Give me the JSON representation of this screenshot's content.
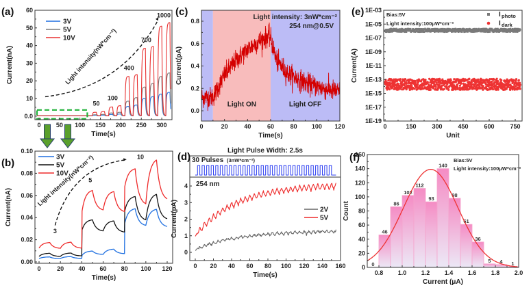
{
  "chart_data": [
    {
      "id": "a",
      "panel_label": "(a)",
      "type": "line",
      "xlabel": "Time(s)",
      "ylabel": "Current(nA)",
      "xlim": [
        -10,
        325
      ],
      "ylim": [
        -2,
        60
      ],
      "xticks": [
        0,
        50,
        100,
        150,
        200,
        250,
        300
      ],
      "yticks": [
        0.0,
        10,
        20,
        30,
        40,
        50,
        60
      ],
      "ytick_labels": [
        "0.0",
        "10",
        "20",
        "30",
        "40",
        "50",
        "60"
      ],
      "legend": [
        "3V",
        "5V",
        "10V"
      ],
      "legend_position": "top-left",
      "annotation": "Light intensity(nW*cm⁻²)",
      "intensity_labels": [
        {
          "text": "50",
          "x": 140,
          "y": 6
        },
        {
          "text": "100",
          "x": 180,
          "y": 9
        },
        {
          "text": "400",
          "x": 220,
          "y": 26
        },
        {
          "text": "700",
          "x": 262,
          "y": 42
        },
        {
          "text": "1000",
          "x": 305,
          "y": 56
        }
      ],
      "pulse_on_times": [
        130,
        150,
        170,
        190,
        210,
        230,
        250,
        270,
        290,
        310
      ],
      "series": [
        {
          "name": "3V",
          "color": "#1e6fe0",
          "peaks": [
            0.5,
            0.6,
            1.0,
            1.2,
            5.5,
            6.3,
            10,
            11,
            12.5,
            13.5
          ]
        },
        {
          "name": "5V",
          "color": "#7a7a7a",
          "peaks": [
            0.8,
            1.0,
            1.8,
            2.2,
            8.5,
            10.5,
            16.5,
            18.5,
            22.5,
            24.5
          ]
        },
        {
          "name": "10V",
          "color": "#e83030",
          "peaks": [
            2.2,
            2.6,
            5.2,
            5.9,
            22.5,
            23.5,
            38.5,
            39.5,
            51,
            53
          ]
        }
      ],
      "highlight_box": {
        "x": [
          -5,
          118
        ],
        "y": [
          -1.5,
          3.5
        ],
        "color": "#22b33a"
      }
    },
    {
      "id": "b",
      "panel_label": "(b)",
      "type": "line",
      "xlabel": "Time(s)",
      "ylabel": "Current(nA)",
      "xlim": [
        -3,
        125
      ],
      "ylim": [
        -0.001,
        0.1
      ],
      "xticks": [
        0,
        20,
        40,
        60,
        80,
        100,
        120
      ],
      "yticks": [
        0.0,
        0.02,
        0.04,
        0.06,
        0.08,
        0.1
      ],
      "ytick_labels": [
        "0.00",
        "0.02",
        "0.04",
        "0.06",
        "0.08",
        "0.10"
      ],
      "legend": [
        "3V",
        "5V",
        "10V"
      ],
      "legend_position": "top-left",
      "annotation": "Light intensity(nW*cm⁻²)",
      "intensity_labels": [
        {
          "text": "3",
          "x": 15,
          "y": 0.026
        },
        {
          "text": "5",
          "x": 48,
          "y": 0.072
        },
        {
          "text": "10",
          "x": 95,
          "y": 0.093
        }
      ],
      "series": [
        {
          "name": "3V",
          "color": "#1e6fe0",
          "points": [
            [
              0,
              0.003
            ],
            [
              10,
              0.0045
            ],
            [
              20,
              0.003
            ],
            [
              30,
              0.0048
            ],
            [
              40,
              0.0032
            ],
            [
              40.3,
              0.006
            ],
            [
              50,
              0.0098
            ],
            [
              60,
              0.0068
            ],
            [
              70,
              0.0115
            ],
            [
              80,
              0.0075
            ],
            [
              80.3,
              0.035
            ],
            [
              90,
              0.048
            ],
            [
              100,
              0.033
            ],
            [
              110,
              0.0475
            ],
            [
              120,
              0.032
            ]
          ]
        },
        {
          "name": "5V",
          "color": "#111111",
          "points": [
            [
              0,
              0.005
            ],
            [
              10,
              0.0078
            ],
            [
              20,
              0.005
            ],
            [
              30,
              0.008
            ],
            [
              40,
              0.0055
            ],
            [
              40.3,
              0.029
            ],
            [
              50,
              0.038
            ],
            [
              60,
              0.028
            ],
            [
              70,
              0.037
            ],
            [
              80,
              0.027
            ],
            [
              80.3,
              0.046
            ],
            [
              90,
              0.059
            ],
            [
              100,
              0.038
            ],
            [
              110,
              0.061
            ],
            [
              120,
              0.039
            ]
          ]
        },
        {
          "name": "10V",
          "color": "#ee2a2a",
          "points": [
            [
              0,
              0.0125
            ],
            [
              10,
              0.0175
            ],
            [
              20,
              0.0123
            ],
            [
              30,
              0.0178
            ],
            [
              40,
              0.0125
            ],
            [
              40.3,
              0.046
            ],
            [
              50,
              0.0645
            ],
            [
              60,
              0.047
            ],
            [
              70,
              0.0635
            ],
            [
              80,
              0.0455
            ],
            [
              80.3,
              0.068
            ],
            [
              90,
              0.084
            ],
            [
              100,
              0.0525
            ],
            [
              110,
              0.092
            ],
            [
              120,
              0.057
            ]
          ]
        }
      ]
    },
    {
      "id": "c",
      "panel_label": "(c)",
      "type": "line",
      "xlabel": "Time(s)",
      "ylabel": "Current(pA)",
      "xlim": [
        0,
        120
      ],
      "ylim": [
        -0.1,
        0.9
      ],
      "xticks": [
        0,
        20,
        40,
        60,
        80,
        100,
        120
      ],
      "yticks": [
        0.0,
        0.2,
        0.4,
        0.6,
        0.8
      ],
      "ytick_labels": [
        "0.0",
        "0.2",
        "0.4",
        "0.6",
        "0.8"
      ],
      "annotations": [
        "Light intensity: 3nW*cm⁻²",
        "254 nm@0.5V"
      ],
      "regions": [
        {
          "label": "",
          "x": [
            0,
            10
          ],
          "color": "#bcbcf6"
        },
        {
          "label": "Light ON",
          "x": [
            10,
            60
          ],
          "color": "#f8bcbc"
        },
        {
          "label": "Light OFF",
          "x": [
            60,
            120
          ],
          "color": "#bcbcf6"
        }
      ],
      "series": [
        {
          "name": "photocurrent",
          "color": "#d40000",
          "trend": [
            [
              0,
              0.12
            ],
            [
              10,
              0.12
            ],
            [
              20,
              0.32
            ],
            [
              30,
              0.45
            ],
            [
              40,
              0.55
            ],
            [
              50,
              0.62
            ],
            [
              58,
              0.67
            ],
            [
              60,
              0.65
            ],
            [
              65,
              0.45
            ],
            [
              75,
              0.33
            ],
            [
              90,
              0.25
            ],
            [
              105,
              0.2
            ],
            [
              120,
              0.17
            ]
          ]
        }
      ]
    },
    {
      "id": "d",
      "panel_label": "(d)",
      "type": "line",
      "title": "Light Pulse Width: 2.5s",
      "xlabel": "Time(s)",
      "ylabel": "Current(pA)",
      "xlim": [
        -2,
        160
      ],
      "ylim": [
        -0.5,
        4.5
      ],
      "xticks": [
        0,
        20,
        40,
        60,
        80,
        100,
        120,
        140,
        160
      ],
      "yticks": [
        0,
        1,
        2,
        3,
        4
      ],
      "ytick_labels": [
        "0",
        "1",
        "2",
        "3",
        "4"
      ],
      "pulse_label": "30 Pulses",
      "pulse_sublabel": "(3nW*cm⁻²)",
      "pulse_count": 30,
      "pulse_color": "#2a3cf0",
      "wavelength_label": "254 nm",
      "legend": [
        "2V",
        "5V"
      ],
      "legend_position": "right",
      "series": [
        {
          "name": "2V",
          "color": "#666666",
          "start": 0.15,
          "end": 1.25,
          "amp": 0.15
        },
        {
          "name": "5V",
          "color": "#ee2a2a",
          "start": 1.0,
          "end": 4.0,
          "amp": 0.35
        }
      ]
    },
    {
      "id": "e",
      "panel_label": "(e)",
      "type": "scatter",
      "xlabel": "Unit",
      "ylabel": "Current(A)",
      "xlim": [
        0,
        780
      ],
      "ylim_log10": [
        -19,
        -3
      ],
      "xticks": [
        0,
        150,
        300,
        450,
        600,
        750
      ],
      "yticks_log10": [
        -3,
        -5,
        -7,
        -9,
        -11,
        -13,
        -15,
        -17,
        -19
      ],
      "ytick_labels": [
        "1E-03",
        "1E-05",
        "1E-07",
        "1E-09",
        "1E-11",
        "1E-13",
        "1E-15",
        "1E-17",
        "1E-19"
      ],
      "annotations": [
        "Bias:5V",
        "Light intensity:100μW*cm⁻²"
      ],
      "legend": [
        {
          "name": "I",
          "sub": "photo",
          "color": "#7a7a7a",
          "marker": "square"
        },
        {
          "name": "I",
          "sub": "dark",
          "color": "#ee3333",
          "marker": "circle"
        }
      ],
      "legend_position": "top-right",
      "series": [
        {
          "name": "I_photo",
          "color": "#7a7a7a",
          "log10_center": -5.9,
          "log10_spread": 0.25,
          "n": 780
        },
        {
          "name": "I_dark",
          "color": "#ee3333",
          "log10_center": -13.7,
          "log10_spread": 0.8,
          "n": 780
        }
      ]
    },
    {
      "id": "f",
      "panel_label": "(f)",
      "type": "bar",
      "xlabel": "Current (μA)",
      "ylabel": "Count",
      "xlim": [
        0.7,
        2.0
      ],
      "ylim": [
        0,
        160
      ],
      "xticks": [
        0.8,
        1.0,
        1.2,
        1.4,
        1.6,
        1.8,
        2.0
      ],
      "xtick_labels": [
        "0.8",
        "1.0",
        "1.2",
        "1.4",
        "1.6",
        "1.8",
        "2.0"
      ],
      "yticks": [
        0,
        20,
        40,
        60,
        80,
        100,
        120,
        140,
        160
      ],
      "annotations": [
        "Bias:5V",
        "Light intensity:100μW*cm⁻²"
      ],
      "bin_width": 0.1,
      "categories": [
        "0.7-0.8",
        "0.8-0.9",
        "0.9-1.0",
        "1.0-1.1",
        "1.1-1.2",
        "1.2-1.3",
        "1.3-1.4",
        "1.4-1.5",
        "1.5-1.6",
        "1.6-1.7",
        "1.7-1.8",
        "1.8-1.9",
        "1.9-2.0"
      ],
      "bin_starts": [
        0.7,
        0.8,
        0.9,
        1.0,
        1.1,
        1.2,
        1.3,
        1.4,
        1.5,
        1.6,
        1.7,
        1.8,
        1.9
      ],
      "values": [
        0,
        46,
        86,
        102,
        112,
        93,
        140,
        98,
        61,
        36,
        5,
        4,
        1
      ],
      "fit": {
        "type": "gaussian",
        "center": 1.245,
        "peak": 139,
        "sigma": 0.235,
        "color": "#ee3333"
      },
      "bar_color": "#f58cc4"
    }
  ],
  "connectors": {
    "arrow_color": "#5aa02c",
    "count": 2
  }
}
